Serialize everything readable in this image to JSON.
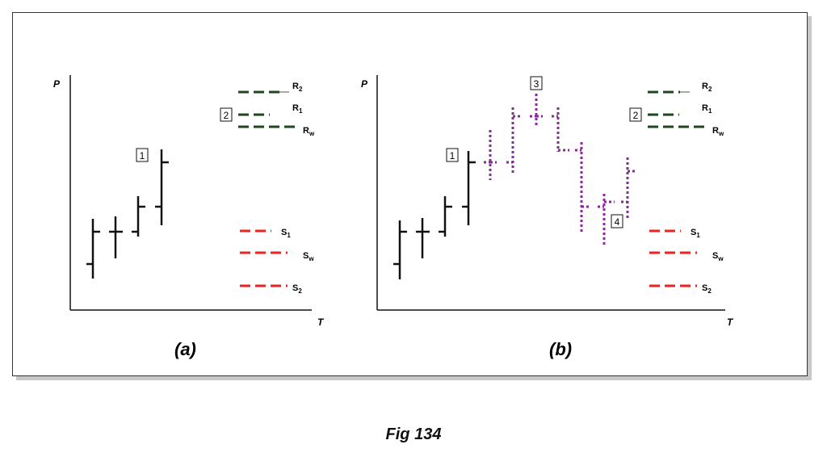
{
  "colors": {
    "price_bar": "#111111",
    "resistance": "#1e4620",
    "support": "#ee2222",
    "projection": "#8a2a9a"
  },
  "panels": [
    {
      "id": "a",
      "caption": "(a)",
      "y_axis": "P",
      "x_axis": "T",
      "markers": [
        {
          "label": "1"
        },
        {
          "label": "2"
        }
      ],
      "resistance_levels": [
        {
          "main": "R",
          "sub": "2"
        },
        {
          "main": "R",
          "sub": "1"
        },
        {
          "main": "R",
          "sub": "w"
        }
      ],
      "support_levels": [
        {
          "main": "S",
          "sub": "1"
        },
        {
          "main": "S",
          "sub": "w"
        },
        {
          "main": "S",
          "sub": "2"
        }
      ]
    },
    {
      "id": "b",
      "caption": "(b)",
      "y_axis": "P",
      "x_axis": "T",
      "markers": [
        {
          "label": "1"
        },
        {
          "label": "2"
        },
        {
          "label": "3"
        },
        {
          "label": "4"
        }
      ],
      "resistance_levels": [
        {
          "main": "R",
          "sub": "2"
        },
        {
          "main": "R",
          "sub": "1"
        },
        {
          "main": "R",
          "sub": "w"
        }
      ],
      "support_levels": [
        {
          "main": "S",
          "sub": "1"
        },
        {
          "main": "S",
          "sub": "w"
        },
        {
          "main": "S",
          "sub": "2"
        }
      ]
    }
  ],
  "figure_caption": "Fig 134"
}
